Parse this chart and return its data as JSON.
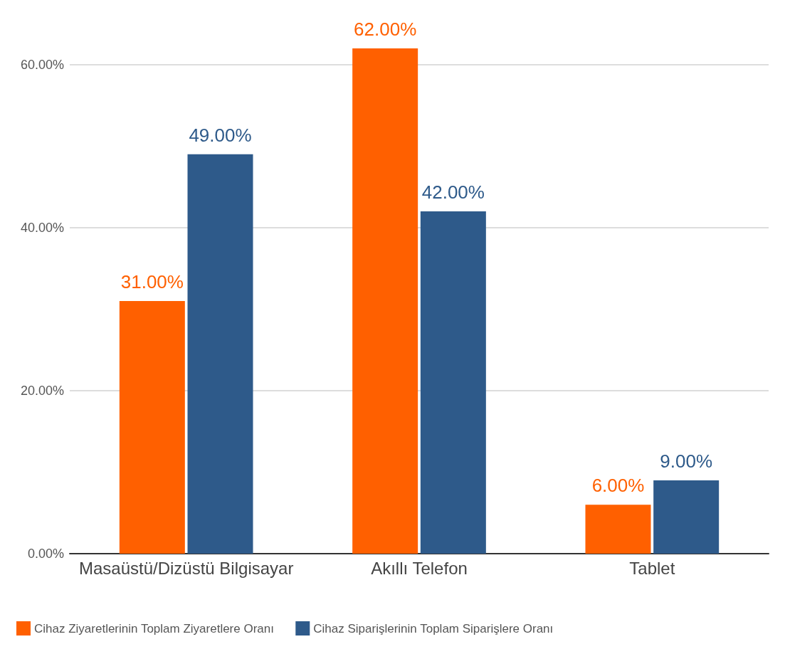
{
  "chart_data": {
    "type": "bar",
    "categories": [
      "Masaüstü/Dizüstü Bilgisayar",
      "Akıllı Telefon",
      "Tablet"
    ],
    "series": [
      {
        "name": "Cihaz Ziyaretlerinin Toplam Ziyaretlere Oranı",
        "color": "#ff6000",
        "values": [
          31,
          62,
          6
        ],
        "value_labels": [
          "31.00%",
          "62.00%",
          "6.00%"
        ]
      },
      {
        "name": "Cihaz Siparişlerinin Toplam Siparişlere Oranı",
        "color": "#2e5a8a",
        "values": [
          49,
          42,
          9
        ],
        "value_labels": [
          "49.00%",
          "42.00%",
          "9.00%"
        ]
      }
    ],
    "yticks": [
      {
        "value": 0,
        "label": "0.00%"
      },
      {
        "value": 20,
        "label": "20.00%"
      },
      {
        "value": 40,
        "label": "40.00%"
      },
      {
        "value": 60,
        "label": "60.00%"
      }
    ],
    "ylim": [
      0,
      62
    ],
    "grid": "y",
    "legend": "bottom"
  }
}
